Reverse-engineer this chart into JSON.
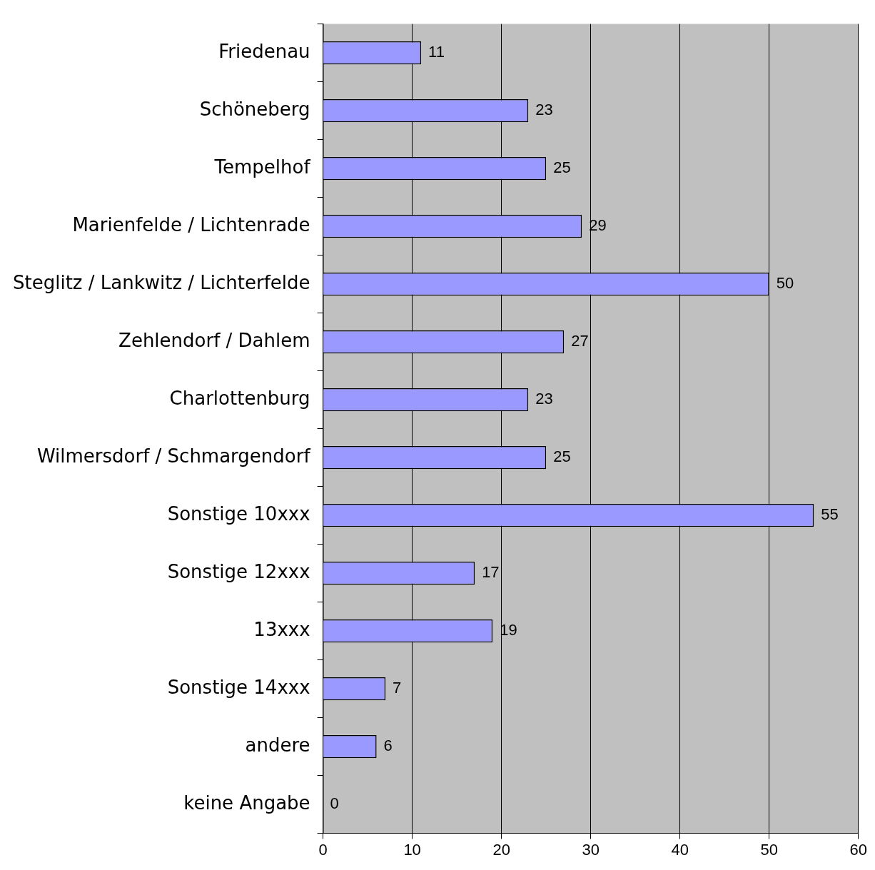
{
  "chart_data": {
    "type": "bar",
    "orientation": "horizontal",
    "categories": [
      "Friedenau",
      "Schöneberg",
      "Tempelhof",
      "Marienfelde / Lichtenrade",
      "Steglitz / Lankwitz / Lichterfelde",
      "Zehlendorf / Dahlem",
      "Charlottenburg",
      "Wilmersdorf / Schmargendorf",
      "Sonstige 10xxx",
      "Sonstige 12xxx",
      "13xxx",
      "Sonstige 14xxx",
      "andere",
      "keine Angabe"
    ],
    "values": [
      11,
      23,
      25,
      29,
      50,
      27,
      23,
      25,
      55,
      17,
      19,
      7,
      6,
      0
    ],
    "color": "#9999ff",
    "xlim": [
      0,
      60
    ],
    "xticks": [
      0,
      10,
      20,
      30,
      40,
      50,
      60
    ],
    "grid": "x",
    "legend": false,
    "data_labels": true
  }
}
